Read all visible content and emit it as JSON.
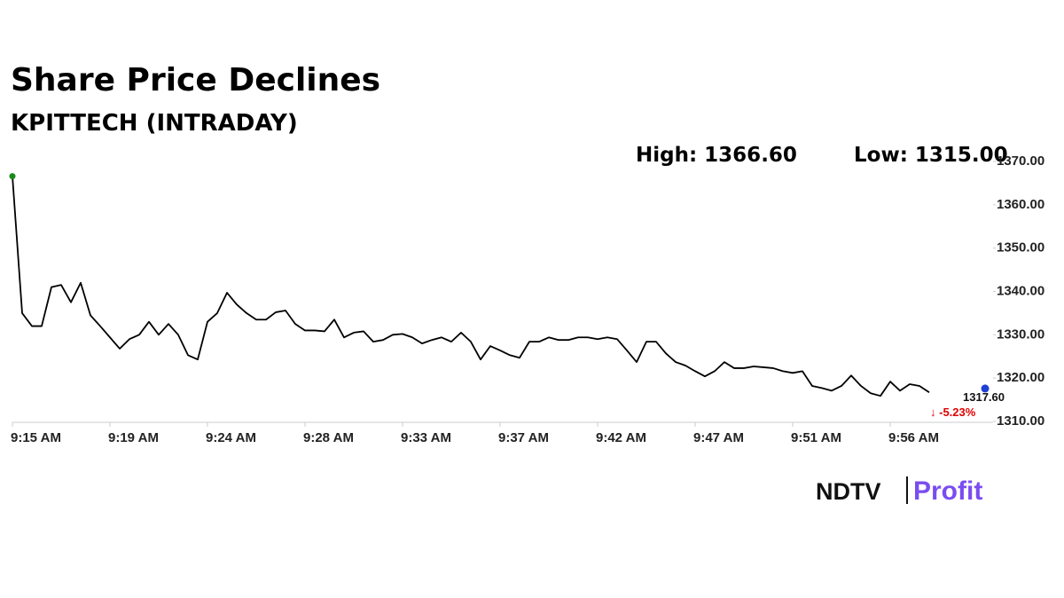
{
  "chart_data": {
    "type": "line",
    "title": "Share Price Declines",
    "subtitle": "KPITTECH (INTRADAY)",
    "annotations": {
      "high": "High: 1366.60",
      "low": "Low: 1315.00",
      "last": "1317.60",
      "change": "↓ -5.23%"
    },
    "brand": [
      "NDTV",
      "Profit"
    ],
    "categories": [
      "9:15 AM",
      null,
      null,
      null,
      null,
      null,
      null,
      null,
      null,
      null,
      "9:19 AM",
      null,
      null,
      null,
      null,
      null,
      null,
      null,
      null,
      null,
      "9:24 AM",
      null,
      null,
      null,
      null,
      null,
      null,
      null,
      null,
      null,
      "9:28 AM",
      null,
      null,
      null,
      null,
      null,
      null,
      null,
      null,
      null,
      "9:33 AM",
      null,
      null,
      null,
      null,
      null,
      null,
      null,
      null,
      null,
      "9:37 AM",
      null,
      null,
      null,
      null,
      null,
      null,
      null,
      null,
      null,
      "9:42 AM",
      null,
      null,
      null,
      null,
      null,
      null,
      null,
      null,
      null,
      "9:47 AM",
      null,
      null,
      null,
      null,
      null,
      null,
      null,
      null,
      null,
      "9:51 AM",
      null,
      null,
      null,
      null,
      null,
      null,
      null,
      null,
      null,
      "9:56 AM",
      null,
      null,
      null,
      null
    ],
    "series": [
      {
        "name": "KPITTECH",
        "color": "#000000",
        "values": [
          1366.6,
          1335,
          1332,
          1332,
          1341,
          1341.5,
          1337.5,
          1342,
          1334.5,
          1332,
          1329.4,
          1326.8,
          1329,
          1330,
          1333,
          1330,
          1332.5,
          1330,
          1325.3,
          1324.3,
          1333,
          1335,
          1339.7,
          1337,
          1335,
          1333.5,
          1333.5,
          1335.2,
          1335.6,
          1332.5,
          1331,
          1331,
          1330.8,
          1333.5,
          1329.4,
          1330.5,
          1330.8,
          1328.4,
          1328.8,
          1330,
          1330.2,
          1329.4,
          1328,
          1328.8,
          1329.4,
          1328.4,
          1330.5,
          1328.4,
          1324.3,
          1327.4,
          1326.4,
          1325.3,
          1324.7,
          1328.4,
          1328.4,
          1329.4,
          1328.8,
          1328.8,
          1329.4,
          1329.4,
          1329,
          1329.4,
          1329,
          1326.4,
          1323.7,
          1328.4,
          1328.4,
          1325.7,
          1323.7,
          1322.9,
          1321.6,
          1320.4,
          1321.6,
          1323.7,
          1322.3,
          1322.3,
          1322.7,
          1322.5,
          1322.3,
          1321.6,
          1321.2,
          1321.6,
          1318.2,
          1317.7,
          1317.1,
          1318.2,
          1320.6,
          1318.2,
          1316.5,
          1315.9,
          1319.2,
          1317.1,
          1318.6,
          1318.2,
          1316.7
        ]
      }
    ],
    "last_value": 1317.6,
    "high_color": "#1a8a1a",
    "last_color": "#1f3fd6",
    "change_color": "#e00000",
    "ylim": [
      1310,
      1370
    ],
    "yticks": [
      {
        "value": 1310,
        "label": "1310.00"
      },
      {
        "value": 1320,
        "label": "1320.00"
      },
      {
        "value": 1330,
        "label": "1330.00"
      },
      {
        "value": 1340,
        "label": "1340.00"
      },
      {
        "value": 1350,
        "label": "1350.00"
      },
      {
        "value": 1360,
        "label": "1360.00"
      },
      {
        "value": 1370,
        "label": "1370.00"
      }
    ],
    "grid": false
  }
}
